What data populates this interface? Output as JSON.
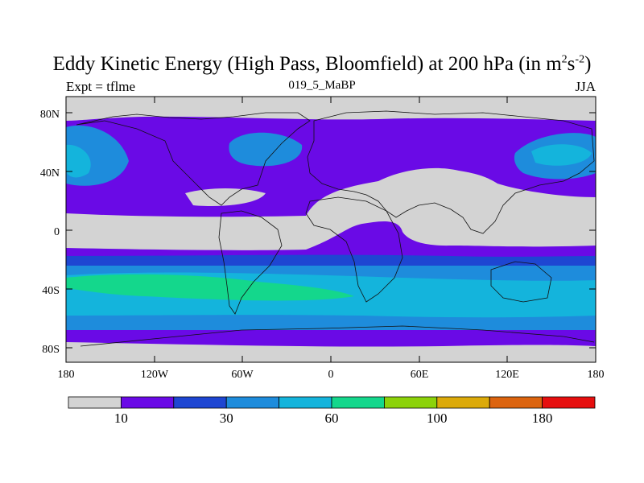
{
  "header": {
    "title_main": "Eddy Kinetic Energy (High Pass, Bloomfield) at 200 hPa (in m",
    "title_sup1": "2",
    "title_mid": "s",
    "title_sup2": "-2",
    "title_end": ")",
    "expt_label": "Expt = tflme",
    "run_label": "019_5_MaBP",
    "season_label": "JJA"
  },
  "map": {
    "lat_ticks": [
      "80N",
      "40N",
      "0",
      "40S",
      "80S"
    ],
    "lon_ticks": [
      "180",
      "120W",
      "60W",
      "0",
      "60E",
      "120E",
      "180"
    ]
  },
  "colorbar": {
    "colors": [
      "#d3d3d3",
      "#6a0ae6",
      "#1e46d2",
      "#1e8cdc",
      "#14b4dc",
      "#14d78c",
      "#8cd20a",
      "#dcaa0a",
      "#dc640f",
      "#e60f0f"
    ],
    "labels": [
      {
        "after_box": 1,
        "text": "10"
      },
      {
        "after_box": 3,
        "text": "30"
      },
      {
        "after_box": 5,
        "text": "60"
      },
      {
        "after_box": 7,
        "text": "100"
      },
      {
        "after_box": 9,
        "text": "180"
      }
    ]
  }
}
